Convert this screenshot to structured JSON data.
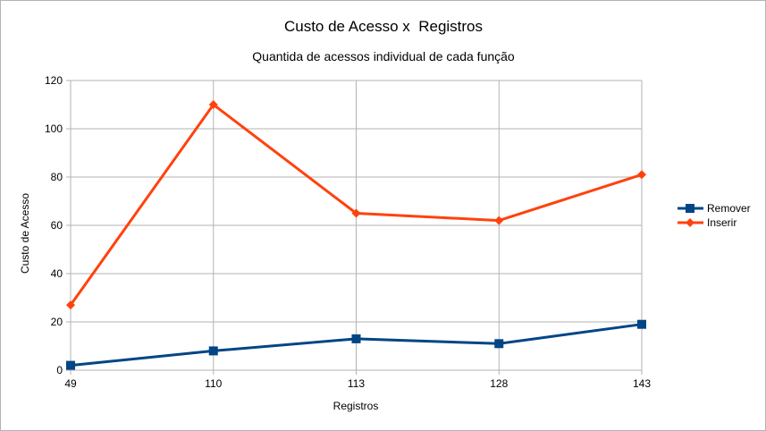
{
  "chart_data": {
    "type": "line",
    "title": "Custo de Acesso x  Registros",
    "subtitle": "Quantida de acessos individual de cada função",
    "xlabel": "Registros",
    "ylabel": "Custo de Acesso",
    "categories": [
      "49",
      "110",
      "113",
      "128",
      "143"
    ],
    "ylim": [
      0,
      120
    ],
    "yticks": [
      0,
      20,
      40,
      60,
      80,
      100,
      120
    ],
    "grid": true,
    "legend_position": "right",
    "series": [
      {
        "name": "Remover",
        "values": [
          2,
          8,
          13,
          11,
          19
        ],
        "color": "#004586",
        "marker": "square"
      },
      {
        "name": "Inserir",
        "values": [
          27,
          110,
          65,
          62,
          81
        ],
        "color": "#ff420e",
        "marker": "diamond"
      }
    ]
  }
}
